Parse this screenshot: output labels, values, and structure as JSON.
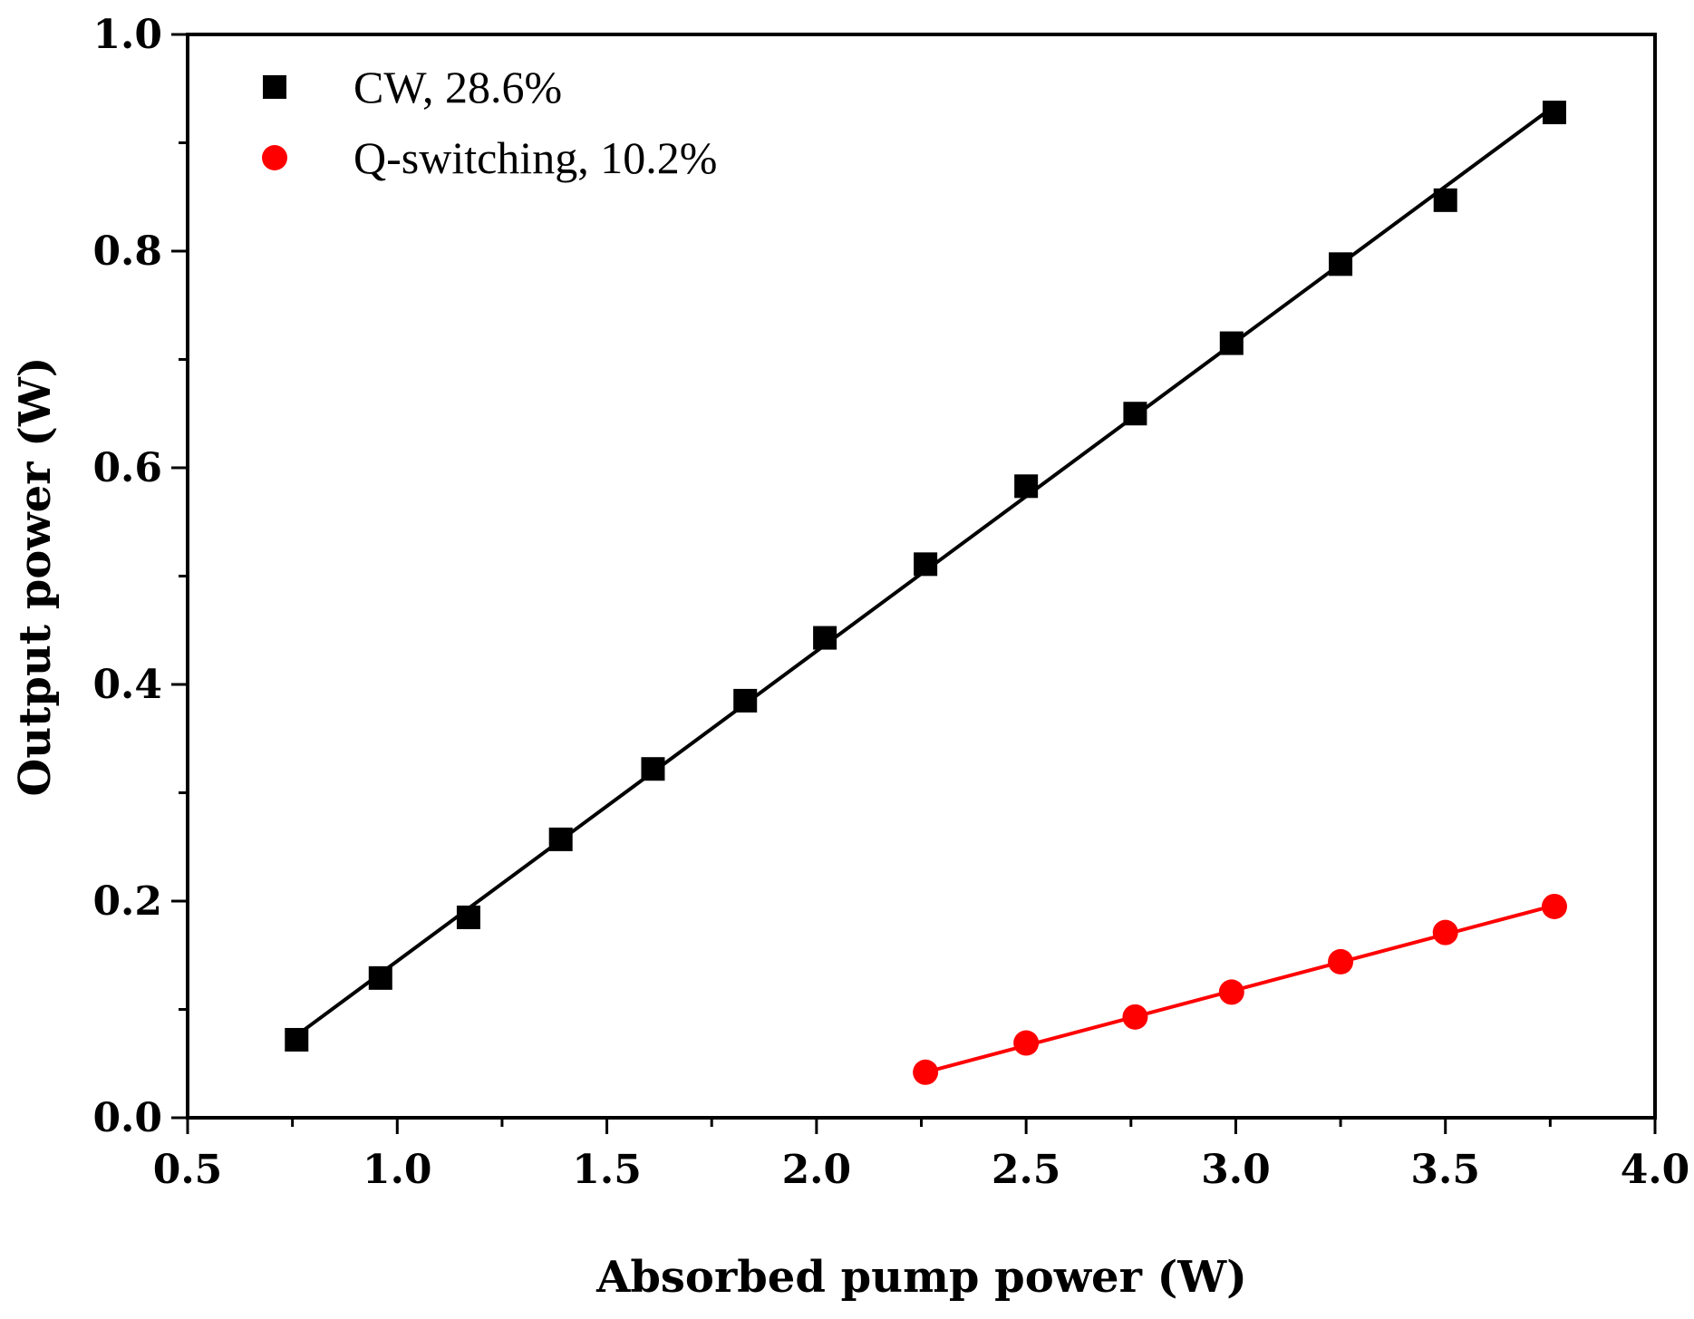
{
  "chart_data": {
    "type": "scatter",
    "title": "",
    "xlabel": "Absorbed pump power (W)",
    "ylabel": "Output power (W)",
    "xlim": [
      0.5,
      4.0
    ],
    "ylim": [
      0.0,
      1.0
    ],
    "xticks": [
      0.5,
      1.0,
      1.5,
      2.0,
      2.5,
      3.0,
      3.5,
      4.0
    ],
    "xtick_labels": [
      "0.5",
      "1.0",
      "1.5",
      "2.0",
      "2.5",
      "3.0",
      "3.5",
      "4.0"
    ],
    "yticks": [
      0.0,
      0.2,
      0.4,
      0.6,
      0.8,
      1.0
    ],
    "ytick_labels": [
      "0.0",
      "0.2",
      "0.4",
      "0.6",
      "0.8",
      "1.0"
    ],
    "legend_position": "top-left",
    "grid": false,
    "series": [
      {
        "name": "CW, 28.6%",
        "marker": "square",
        "color": "#000000",
        "line_color": "#000000",
        "x": [
          0.76,
          0.96,
          1.17,
          1.39,
          1.61,
          1.83,
          2.02,
          2.26,
          2.5,
          2.76,
          2.99,
          3.25,
          3.5,
          3.76
        ],
        "values": [
          0.072,
          0.129,
          0.185,
          0.257,
          0.322,
          0.385,
          0.443,
          0.511,
          0.583,
          0.65,
          0.715,
          0.788,
          0.847,
          0.928
        ],
        "fit_line": {
          "x": [
            0.76,
            3.76
          ],
          "y": [
            0.076,
            0.934
          ]
        }
      },
      {
        "name": "Q-switching, 10.2%",
        "marker": "circle",
        "color": "#ff0000",
        "line_color": "#ff0000",
        "x": [
          2.26,
          2.5,
          2.76,
          2.99,
          3.25,
          3.5,
          3.76
        ],
        "values": [
          0.042,
          0.069,
          0.093,
          0.116,
          0.144,
          0.171,
          0.195
        ],
        "fit_line": {
          "x": [
            2.26,
            3.76
          ],
          "y": [
            0.042,
            0.196
          ]
        }
      }
    ]
  }
}
